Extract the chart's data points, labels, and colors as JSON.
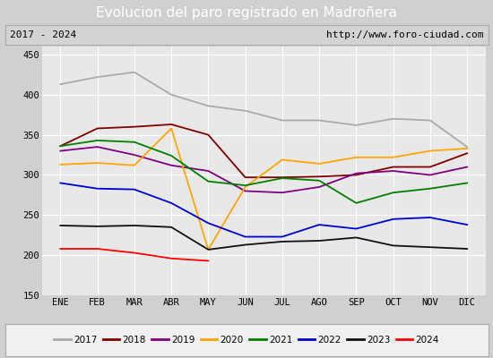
{
  "title": "Evolucion del paro registrado en Madroñera",
  "subtitle_left": "2017 - 2024",
  "subtitle_right": "http://www.foro-ciudad.com",
  "ylim": [
    150,
    460
  ],
  "yticks": [
    150,
    200,
    250,
    300,
    350,
    400,
    450
  ],
  "months": [
    "ENE",
    "FEB",
    "MAR",
    "ABR",
    "MAY",
    "JUN",
    "JUL",
    "AGO",
    "SEP",
    "OCT",
    "NOV",
    "DIC"
  ],
  "series": {
    "2017": {
      "color": "#aaaaaa",
      "data": [
        413,
        422,
        428,
        400,
        386,
        380,
        368,
        368,
        362,
        370,
        368,
        335
      ]
    },
    "2018": {
      "color": "#800000",
      "data": [
        336,
        358,
        360,
        363,
        350,
        297,
        297,
        298,
        300,
        310,
        310,
        327
      ]
    },
    "2019": {
      "color": "#800080",
      "data": [
        330,
        335,
        325,
        312,
        305,
        280,
        278,
        285,
        302,
        305,
        300,
        310
      ]
    },
    "2020": {
      "color": "#ffa500",
      "data": [
        313,
        315,
        312,
        358,
        207,
        285,
        319,
        314,
        322,
        322,
        330,
        333
      ]
    },
    "2021": {
      "color": "#008000",
      "data": [
        336,
        343,
        341,
        324,
        292,
        287,
        296,
        293,
        265,
        278,
        283,
        290
      ]
    },
    "2022": {
      "color": "#0000cd",
      "data": [
        290,
        283,
        282,
        265,
        240,
        223,
        223,
        238,
        233,
        245,
        247,
        238
      ]
    },
    "2023": {
      "color": "#111111",
      "data": [
        237,
        236,
        237,
        235,
        207,
        213,
        217,
        218,
        222,
        212,
        210,
        208
      ]
    },
    "2024": {
      "color": "#ff0000",
      "data": [
        208,
        208,
        203,
        196,
        193,
        null,
        null,
        null,
        null,
        null,
        null,
        null
      ]
    }
  },
  "fig_bg": "#d0d0d0",
  "plot_bg": "#e8e8e8",
  "title_bg": "#4f86c6",
  "title_fg": "#ffffff",
  "header_bg": "#d3d3d3",
  "header_border": "#aaaaaa",
  "legend_bg": "#f0f0f0",
  "legend_border": "#aaaaaa",
  "grid_color": "#ffffff",
  "title_fontsize": 11,
  "header_fontsize": 8,
  "tick_fontsize": 7.5,
  "legend_fontsize": 7.5
}
